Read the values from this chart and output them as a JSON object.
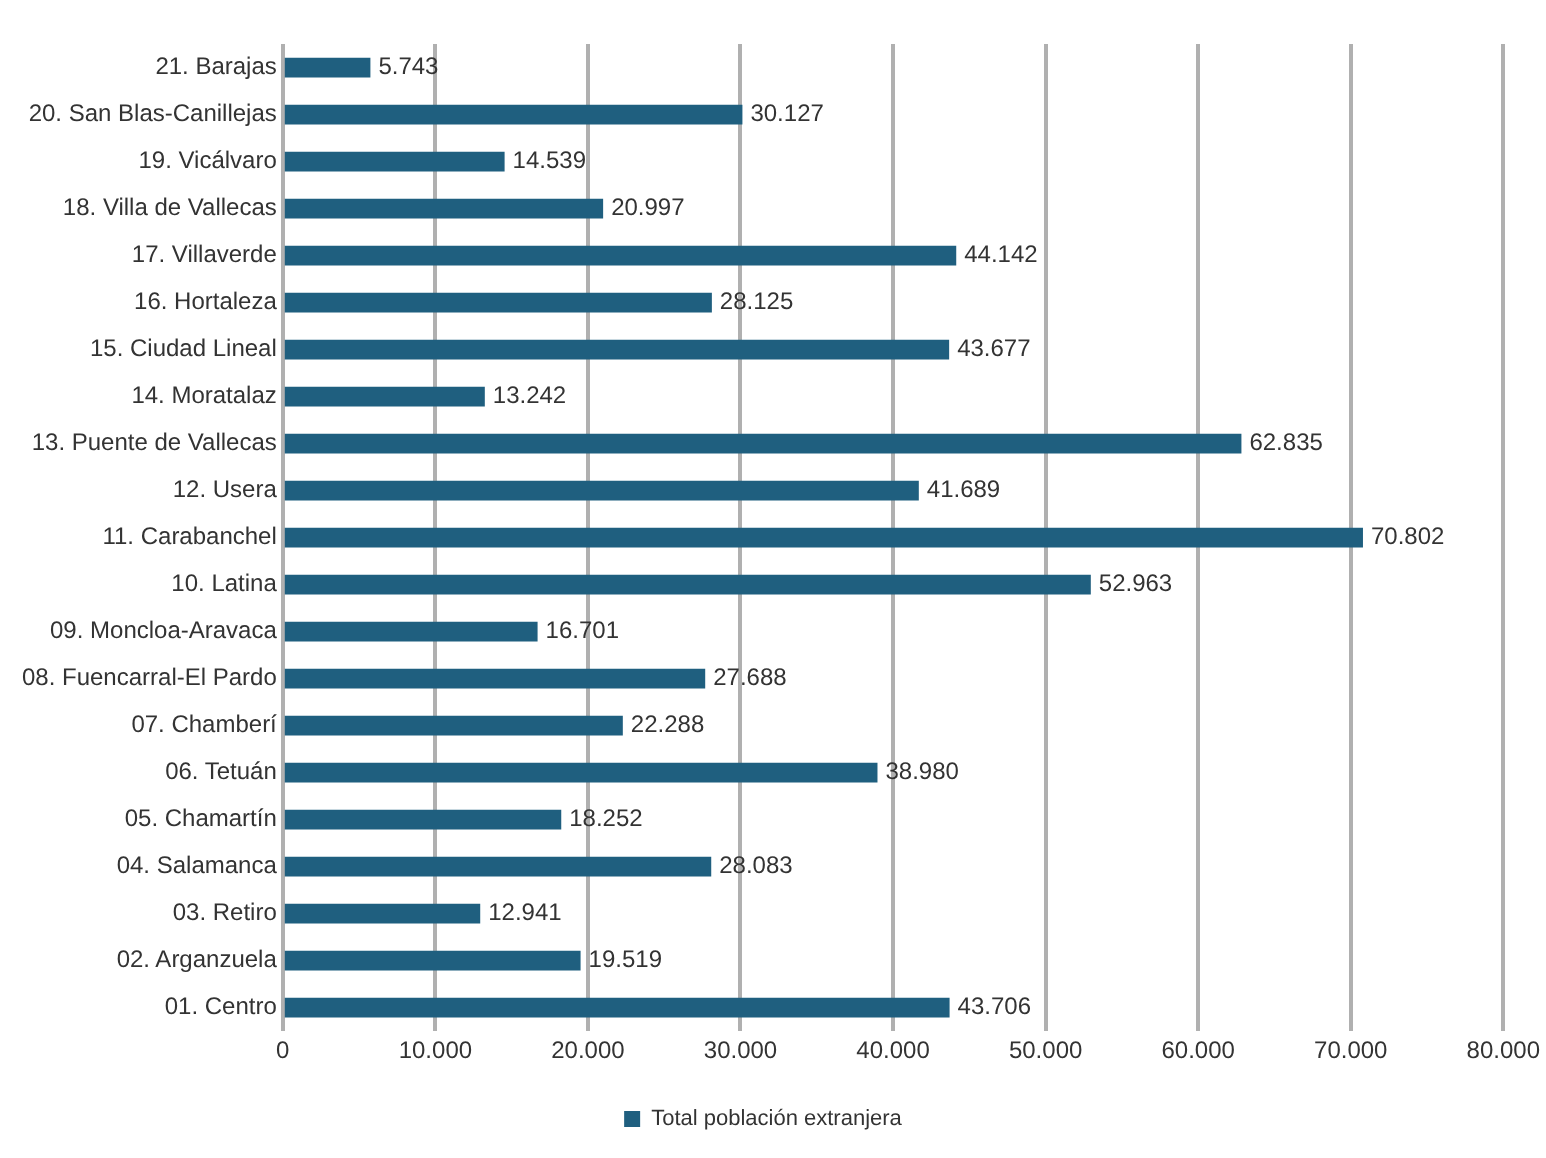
{
  "chart_data": {
    "type": "bar",
    "orientation": "horizontal",
    "categories": [
      "21. Barajas",
      "20. San Blas-Canillejas",
      "19. Vicálvaro",
      "18. Villa de Vallecas",
      "17. Villaverde",
      "16. Hortaleza",
      "15. Ciudad Lineal",
      "14. Moratalaz",
      "13. Puente de Vallecas",
      "12. Usera",
      "11. Carabanchel",
      "10. Latina",
      "09. Moncloa-Aravaca",
      "08. Fuencarral-El Pardo",
      "07. Chamberí",
      "06. Tetuán",
      "05. Chamartín",
      "04. Salamanca",
      "03. Retiro",
      "02. Arganzuela",
      "01. Centro"
    ],
    "series": [
      {
        "name": "Total población extranjera",
        "color": "#1f5f7f",
        "values": [
          5743,
          30127,
          14539,
          20997,
          44142,
          28125,
          43677,
          13242,
          62835,
          41689,
          70802,
          52963,
          16701,
          27688,
          22288,
          38980,
          18252,
          28083,
          12941,
          19519,
          43706
        ],
        "value_labels": [
          "5.743",
          "30.127",
          "14.539",
          "20.997",
          "44.142",
          "28.125",
          "43.677",
          "13.242",
          "62.835",
          "41.689",
          "70.802",
          "52.963",
          "16.701",
          "27.688",
          "22.288",
          "38.980",
          "18.252",
          "28.083",
          "12.941",
          "19.519",
          "43.706"
        ]
      }
    ],
    "xlim": [
      0,
      80000
    ],
    "xticks": [
      0,
      {
        "value": 10000,
        "label": "10.000"
      },
      {
        "value": 20000,
        "label": "20.000"
      },
      {
        "value": 30000,
        "label": "30.000"
      },
      {
        "value": 40000,
        "label": "40.000"
      },
      {
        "value": 50000,
        "label": "50.000"
      },
      {
        "value": 60000,
        "label": "60.000"
      },
      {
        "value": 70000,
        "label": "70.000"
      },
      {
        "value": 80000,
        "label": "80.000"
      }
    ],
    "grid": "x",
    "legend": "bottom"
  }
}
